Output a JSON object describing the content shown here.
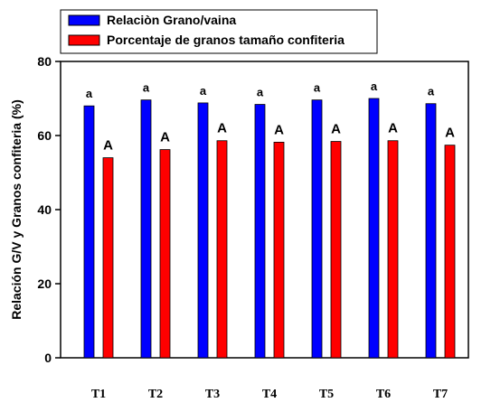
{
  "colors": {
    "series_1": "#0000ff",
    "series_2": "#ff0000",
    "axis": "#000000",
    "background": "#ffffff"
  },
  "chart_data": {
    "type": "bar",
    "title": "",
    "xlabel": "",
    "ylabel": "Relación G/V y Granos confiteria (%)",
    "ylim": [
      0,
      80
    ],
    "yticks": [
      0,
      20,
      40,
      60,
      80
    ],
    "grid": false,
    "legend_position": "top-left",
    "categories": [
      "T1",
      "T2",
      "T3",
      "T4",
      "T5",
      "T6",
      "T7"
    ],
    "series": [
      {
        "name": "Relaciòn Grano/vaina",
        "values": [
          68,
          69.6,
          68.8,
          68.4,
          69.6,
          70,
          68.6
        ],
        "labels": [
          "a",
          "a",
          "a",
          "a",
          "a",
          "a",
          "a"
        ]
      },
      {
        "name": "Porcentaje de granos tamaño confiteria",
        "values": [
          54,
          56.2,
          58.6,
          58.2,
          58.4,
          58.6,
          57.4
        ],
        "labels": [
          "A",
          "A",
          "A",
          "A",
          "A",
          "A",
          "A"
        ]
      }
    ]
  }
}
